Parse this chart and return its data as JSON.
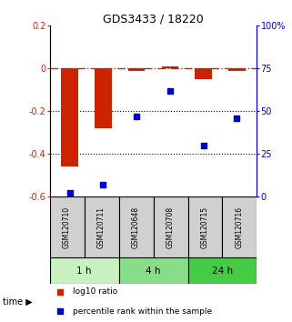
{
  "title": "GDS3433 / 18220",
  "samples": [
    "GSM120710",
    "GSM120711",
    "GSM120648",
    "GSM120708",
    "GSM120715",
    "GSM120716"
  ],
  "log10_ratio": [
    -0.46,
    -0.28,
    -0.01,
    0.01,
    -0.05,
    -0.01
  ],
  "percentile_rank": [
    2,
    7,
    47,
    62,
    30,
    46
  ],
  "left_ylim": [
    -0.6,
    0.2
  ],
  "right_ylim": [
    0,
    100
  ],
  "left_yticks": [
    -0.6,
    -0.4,
    -0.2,
    0.0,
    0.2
  ],
  "right_yticks": [
    0,
    25,
    50,
    75,
    100
  ],
  "right_yticklabels": [
    "0",
    "25",
    "50",
    "75",
    "100%"
  ],
  "time_groups": [
    {
      "label": "1 h",
      "color": "#c8f0c0",
      "indices": [
        0,
        1
      ]
    },
    {
      "label": "4 h",
      "color": "#88dd88",
      "indices": [
        2,
        3
      ]
    },
    {
      "label": "24 h",
      "color": "#44cc44",
      "indices": [
        4,
        5
      ]
    }
  ],
  "bar_color": "#cc2200",
  "dot_color": "#0000cc",
  "hline_color": "#cc2200",
  "hline_style": "-.",
  "dotline_color": "black",
  "dotline_style": ":",
  "bar_width": 0.5,
  "legend_red_label": "log10 ratio",
  "legend_blue_label": "percentile rank within the sample",
  "background_plot": "white",
  "background_gsm": "#d0d0d0"
}
